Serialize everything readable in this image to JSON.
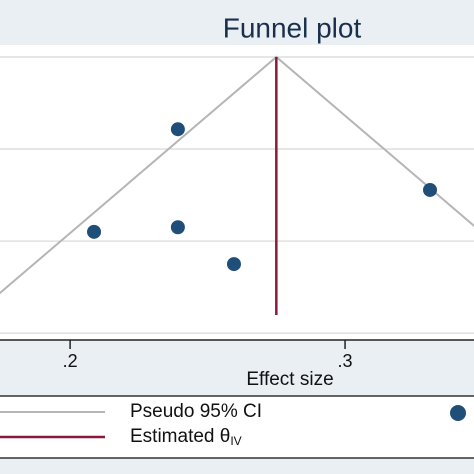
{
  "chart_data": {
    "type": "scatter",
    "title": "Funnel plot",
    "x_label": "Effect size",
    "xlim": [
      0.1745,
      0.3469
    ],
    "xticks": [
      {
        "value": 0.2,
        "label": ".2"
      },
      {
        "value": 0.3,
        "label": ".3"
      }
    ],
    "ylim": [
      -0.0026,
      0.0615
    ],
    "yreverse": true,
    "yticks": [
      0,
      0.02,
      0.04,
      0.06
    ],
    "grid": true,
    "estimate": 0.275,
    "estimate_color": "#8b1a3a",
    "ci_color": "#b5b5b5",
    "legend": [
      {
        "name": "Pseudo 95% CI"
      },
      {
        "name": "Estimated θ",
        "subscript": "IV"
      }
    ],
    "series": [
      {
        "color": "#1f4e79",
        "x": [
          0.2392,
          0.2087,
          0.2392,
          0.2596,
          0.3309
        ],
        "values": [
          0.0157,
          0.038,
          0.037,
          0.045,
          0.0289
        ]
      }
    ]
  }
}
